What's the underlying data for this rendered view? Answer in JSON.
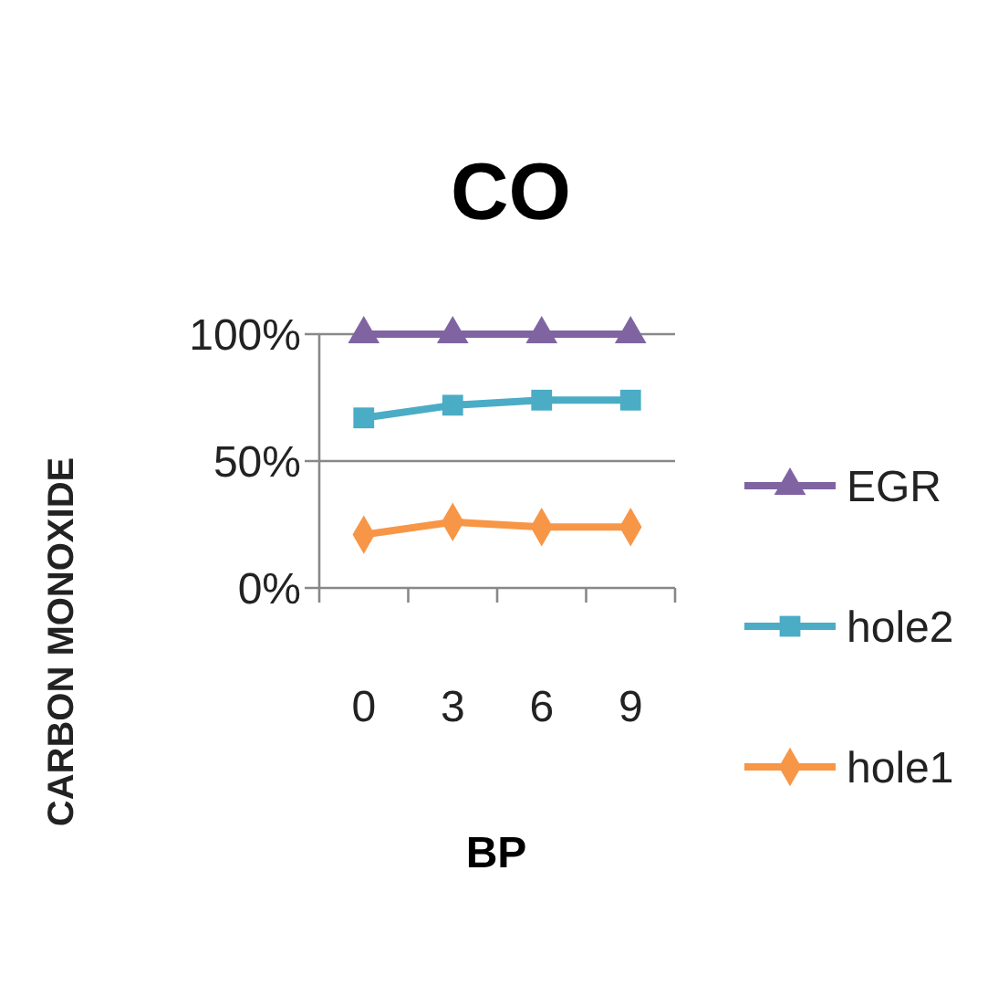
{
  "chart_data": {
    "type": "line",
    "title": "CO",
    "xlabel": "BP",
    "ylabel": "CARBON MONOXIDE",
    "categories": [
      "0",
      "3",
      "6",
      "9"
    ],
    "series": [
      {
        "name": "EGR",
        "color": "#8064a2",
        "marker": "triangle",
        "values": [
          100,
          100,
          100,
          100
        ]
      },
      {
        "name": "hole2",
        "color": "#4bacc6",
        "marker": "square",
        "values": [
          67,
          72,
          74,
          74
        ]
      },
      {
        "name": "hole1",
        "color": "#f79646",
        "marker": "diamond",
        "values": [
          21,
          26,
          24,
          24
        ]
      }
    ],
    "ylim": [
      0,
      100
    ],
    "yticks": [
      {
        "value": 0,
        "label": "0%"
      },
      {
        "value": 50,
        "label": "50%"
      },
      {
        "value": 100,
        "label": "100%"
      }
    ],
    "grid": "y",
    "legend": "right"
  }
}
